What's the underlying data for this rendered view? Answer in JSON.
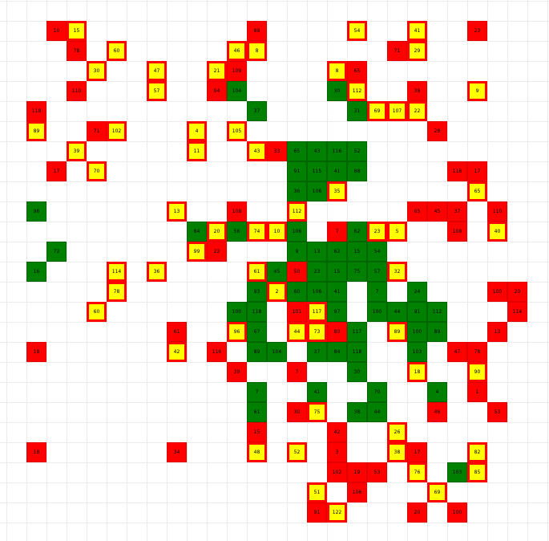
{
  "board": {
    "cols": 27,
    "rows": 26,
    "colors": {
      "red": "#ff0000",
      "green": "#008000",
      "yellow": "#ffff00",
      "border_red": "#e00000",
      "border_yellow": "#e6b800",
      "border_green": "#006400",
      "grid": "#ebebeb"
    },
    "cells": [
      {
        "c": 2,
        "r": 1,
        "k": "R",
        "t": "10"
      },
      {
        "c": 3,
        "r": 1,
        "k": "Y",
        "t": "15"
      },
      {
        "c": 12,
        "r": 1,
        "k": "R",
        "t": "88"
      },
      {
        "c": 17,
        "r": 1,
        "k": "Y",
        "t": "54"
      },
      {
        "c": 20,
        "r": 1,
        "k": "Y",
        "t": "41"
      },
      {
        "c": 23,
        "r": 1,
        "k": "R",
        "t": "23"
      },
      {
        "c": 3,
        "r": 2,
        "k": "R",
        "t": "78"
      },
      {
        "c": 5,
        "r": 2,
        "k": "Y",
        "t": "60"
      },
      {
        "c": 11,
        "r": 2,
        "k": "Y",
        "t": "46"
      },
      {
        "c": 12,
        "r": 2,
        "k": "Y",
        "t": "8"
      },
      {
        "c": 19,
        "r": 2,
        "k": "R",
        "t": "71"
      },
      {
        "c": 20,
        "r": 2,
        "k": "Y",
        "t": "29"
      },
      {
        "c": 4,
        "r": 3,
        "k": "Y",
        "t": "30"
      },
      {
        "c": 7,
        "r": 3,
        "k": "Y",
        "t": "47"
      },
      {
        "c": 10,
        "r": 3,
        "k": "Y",
        "t": "21"
      },
      {
        "c": 11,
        "r": 3,
        "k": "R",
        "t": "109"
      },
      {
        "c": 16,
        "r": 3,
        "k": "Y",
        "t": "8"
      },
      {
        "c": 17,
        "r": 3,
        "k": "R",
        "t": "65"
      },
      {
        "c": 3,
        "r": 4,
        "k": "R",
        "t": "110"
      },
      {
        "c": 7,
        "r": 4,
        "k": "Y",
        "t": "57"
      },
      {
        "c": 10,
        "r": 4,
        "k": "R",
        "t": "94"
      },
      {
        "c": 11,
        "r": 4,
        "k": "G",
        "t": "104"
      },
      {
        "c": 16,
        "r": 4,
        "k": "G",
        "t": "30"
      },
      {
        "c": 17,
        "r": 4,
        "k": "Y",
        "t": "112"
      },
      {
        "c": 20,
        "r": 4,
        "k": "R",
        "t": "38"
      },
      {
        "c": 23,
        "r": 4,
        "k": "Y",
        "t": "9"
      },
      {
        "c": 1,
        "r": 5,
        "k": "R",
        "t": "118"
      },
      {
        "c": 12,
        "r": 5,
        "k": "G",
        "t": "37"
      },
      {
        "c": 17,
        "r": 5,
        "k": "G",
        "t": "31"
      },
      {
        "c": 18,
        "r": 5,
        "k": "Y",
        "t": "69"
      },
      {
        "c": 19,
        "r": 5,
        "k": "Y",
        "t": "107"
      },
      {
        "c": 20,
        "r": 5,
        "k": "Y",
        "t": "22"
      },
      {
        "c": 1,
        "r": 6,
        "k": "Y",
        "t": "89"
      },
      {
        "c": 4,
        "r": 6,
        "k": "R",
        "t": "71"
      },
      {
        "c": 5,
        "r": 6,
        "k": "Y",
        "t": "102"
      },
      {
        "c": 9,
        "r": 6,
        "k": "Y",
        "t": "4"
      },
      {
        "c": 11,
        "r": 6,
        "k": "Y",
        "t": "105"
      },
      {
        "c": 21,
        "r": 6,
        "k": "R",
        "t": "28"
      },
      {
        "c": 3,
        "r": 7,
        "k": "Y",
        "t": "39"
      },
      {
        "c": 9,
        "r": 7,
        "k": "Y",
        "t": "11"
      },
      {
        "c": 12,
        "r": 7,
        "k": "Y",
        "t": "43"
      },
      {
        "c": 13,
        "r": 7,
        "k": "R",
        "t": "33"
      },
      {
        "c": 14,
        "r": 7,
        "k": "G",
        "t": "65"
      },
      {
        "c": 15,
        "r": 7,
        "k": "G",
        "t": "43"
      },
      {
        "c": 16,
        "r": 7,
        "k": "G",
        "t": "116"
      },
      {
        "c": 17,
        "r": 7,
        "k": "G",
        "t": "52"
      },
      {
        "c": 2,
        "r": 8,
        "k": "R",
        "t": "17"
      },
      {
        "c": 4,
        "r": 8,
        "k": "Y",
        "t": "70"
      },
      {
        "c": 14,
        "r": 8,
        "k": "G",
        "t": "91"
      },
      {
        "c": 15,
        "r": 8,
        "k": "G",
        "t": "115"
      },
      {
        "c": 16,
        "r": 8,
        "k": "G",
        "t": "41"
      },
      {
        "c": 17,
        "r": 8,
        "k": "G",
        "t": "88"
      },
      {
        "c": 22,
        "r": 8,
        "k": "R",
        "t": "118"
      },
      {
        "c": 23,
        "r": 8,
        "k": "R",
        "t": "17"
      },
      {
        "c": 14,
        "r": 9,
        "k": "G",
        "t": "36"
      },
      {
        "c": 15,
        "r": 9,
        "k": "G",
        "t": "106"
      },
      {
        "c": 16,
        "r": 9,
        "k": "Y",
        "t": "35"
      },
      {
        "c": 23,
        "r": 9,
        "k": "Y",
        "t": "65"
      },
      {
        "c": 1,
        "r": 10,
        "k": "G",
        "t": "96"
      },
      {
        "c": 8,
        "r": 10,
        "k": "Y",
        "t": "13"
      },
      {
        "c": 11,
        "r": 10,
        "k": "R",
        "t": "108"
      },
      {
        "c": 14,
        "r": 10,
        "k": "Y",
        "t": "112"
      },
      {
        "c": 20,
        "r": 10,
        "k": "R",
        "t": "65"
      },
      {
        "c": 21,
        "r": 10,
        "k": "R",
        "t": "45"
      },
      {
        "c": 22,
        "r": 10,
        "k": "R",
        "t": "37"
      },
      {
        "c": 24,
        "r": 10,
        "k": "R",
        "t": "110"
      },
      {
        "c": 9,
        "r": 11,
        "k": "G",
        "t": "84"
      },
      {
        "c": 10,
        "r": 11,
        "k": "Y",
        "t": "20"
      },
      {
        "c": 11,
        "r": 11,
        "k": "G",
        "t": "56"
      },
      {
        "c": 12,
        "r": 11,
        "k": "Y",
        "t": "74"
      },
      {
        "c": 13,
        "r": 11,
        "k": "Y",
        "t": "10"
      },
      {
        "c": 14,
        "r": 11,
        "k": "G",
        "t": "106"
      },
      {
        "c": 16,
        "r": 11,
        "k": "R",
        "t": "7"
      },
      {
        "c": 17,
        "r": 11,
        "k": "G",
        "t": "62"
      },
      {
        "c": 18,
        "r": 11,
        "k": "Y",
        "t": "23"
      },
      {
        "c": 19,
        "r": 11,
        "k": "Y",
        "t": "5"
      },
      {
        "c": 22,
        "r": 11,
        "k": "R",
        "t": "108"
      },
      {
        "c": 24,
        "r": 11,
        "k": "Y",
        "t": "40"
      },
      {
        "c": 2,
        "r": 12,
        "k": "G",
        "t": "72"
      },
      {
        "c": 9,
        "r": 12,
        "k": "Y",
        "t": "99"
      },
      {
        "c": 10,
        "r": 12,
        "k": "R",
        "t": "22"
      },
      {
        "c": 14,
        "r": 12,
        "k": "G",
        "t": "9"
      },
      {
        "c": 15,
        "r": 12,
        "k": "G",
        "t": "13"
      },
      {
        "c": 16,
        "r": 12,
        "k": "G",
        "t": "62"
      },
      {
        "c": 17,
        "r": 12,
        "k": "G",
        "t": "15"
      },
      {
        "c": 18,
        "r": 12,
        "k": "G",
        "t": "54"
      },
      {
        "c": 1,
        "r": 13,
        "k": "G",
        "t": "16"
      },
      {
        "c": 5,
        "r": 13,
        "k": "Y",
        "t": "114"
      },
      {
        "c": 7,
        "r": 13,
        "k": "Y",
        "t": "36"
      },
      {
        "c": 12,
        "r": 13,
        "k": "Y",
        "t": "61"
      },
      {
        "c": 13,
        "r": 13,
        "k": "G",
        "t": "45"
      },
      {
        "c": 14,
        "r": 13,
        "k": "R",
        "t": "50"
      },
      {
        "c": 15,
        "r": 13,
        "k": "G",
        "t": "23"
      },
      {
        "c": 16,
        "r": 13,
        "k": "G",
        "t": "15"
      },
      {
        "c": 17,
        "r": 13,
        "k": "G",
        "t": "75"
      },
      {
        "c": 18,
        "r": 13,
        "k": "G",
        "t": "57"
      },
      {
        "c": 19,
        "r": 13,
        "k": "Y",
        "t": "32"
      },
      {
        "c": 5,
        "r": 14,
        "k": "Y",
        "t": "78"
      },
      {
        "c": 12,
        "r": 14,
        "k": "G",
        "t": "93"
      },
      {
        "c": 13,
        "r": 14,
        "k": "Y",
        "t": "2"
      },
      {
        "c": 14,
        "r": 14,
        "k": "G",
        "t": "60"
      },
      {
        "c": 15,
        "r": 14,
        "k": "G",
        "t": "106"
      },
      {
        "c": 16,
        "r": 14,
        "k": "G",
        "t": "41"
      },
      {
        "c": 18,
        "r": 14,
        "k": "G",
        "t": "7"
      },
      {
        "c": 20,
        "r": 14,
        "k": "G",
        "t": "24"
      },
      {
        "c": 24,
        "r": 14,
        "k": "R",
        "t": "100"
      },
      {
        "c": 25,
        "r": 14,
        "k": "R",
        "t": "20"
      },
      {
        "c": 4,
        "r": 15,
        "k": "Y",
        "t": "60"
      },
      {
        "c": 11,
        "r": 15,
        "k": "G",
        "t": "100"
      },
      {
        "c": 12,
        "r": 15,
        "k": "G",
        "t": "118"
      },
      {
        "c": 14,
        "r": 15,
        "k": "R",
        "t": "101"
      },
      {
        "c": 15,
        "r": 15,
        "k": "Y",
        "t": "117"
      },
      {
        "c": 16,
        "r": 15,
        "k": "G",
        "t": "97"
      },
      {
        "c": 18,
        "r": 15,
        "k": "G",
        "t": "100"
      },
      {
        "c": 19,
        "r": 15,
        "k": "G",
        "t": "44"
      },
      {
        "c": 20,
        "r": 15,
        "k": "G",
        "t": "91"
      },
      {
        "c": 21,
        "r": 15,
        "k": "G",
        "t": "112"
      },
      {
        "c": 25,
        "r": 15,
        "k": "R",
        "t": "114"
      },
      {
        "c": 8,
        "r": 16,
        "k": "R",
        "t": "61"
      },
      {
        "c": 11,
        "r": 16,
        "k": "Y",
        "t": "96"
      },
      {
        "c": 12,
        "r": 16,
        "k": "G",
        "t": "67"
      },
      {
        "c": 14,
        "r": 16,
        "k": "Y",
        "t": "44"
      },
      {
        "c": 15,
        "r": 16,
        "k": "Y",
        "t": "73"
      },
      {
        "c": 16,
        "r": 16,
        "k": "R",
        "t": "80"
      },
      {
        "c": 17,
        "r": 16,
        "k": "G",
        "t": "117"
      },
      {
        "c": 19,
        "r": 16,
        "k": "Y",
        "t": "89"
      },
      {
        "c": 20,
        "r": 16,
        "k": "G",
        "t": "100"
      },
      {
        "c": 21,
        "r": 16,
        "k": "G",
        "t": "89"
      },
      {
        "c": 24,
        "r": 16,
        "k": "R",
        "t": "13"
      },
      {
        "c": 1,
        "r": 17,
        "k": "R",
        "t": "18"
      },
      {
        "c": 8,
        "r": 17,
        "k": "Y",
        "t": "42"
      },
      {
        "c": 10,
        "r": 17,
        "k": "R",
        "t": "116"
      },
      {
        "c": 12,
        "r": 17,
        "k": "G",
        "t": "89"
      },
      {
        "c": 13,
        "r": 17,
        "k": "G",
        "t": "104"
      },
      {
        "c": 15,
        "r": 17,
        "k": "G",
        "t": "37"
      },
      {
        "c": 16,
        "r": 17,
        "k": "G",
        "t": "84"
      },
      {
        "c": 17,
        "r": 17,
        "k": "G",
        "t": "118"
      },
      {
        "c": 20,
        "r": 17,
        "k": "G",
        "t": "103"
      },
      {
        "c": 22,
        "r": 17,
        "k": "R",
        "t": "47"
      },
      {
        "c": 23,
        "r": 17,
        "k": "R",
        "t": "78"
      },
      {
        "c": 11,
        "r": 18,
        "k": "R",
        "t": "39"
      },
      {
        "c": 14,
        "r": 18,
        "k": "R",
        "t": "7"
      },
      {
        "c": 17,
        "r": 18,
        "k": "G",
        "t": "30"
      },
      {
        "c": 20,
        "r": 18,
        "k": "Y",
        "t": "18"
      },
      {
        "c": 23,
        "r": 18,
        "k": "Y",
        "t": "90"
      },
      {
        "c": 12,
        "r": 19,
        "k": "G",
        "t": "7"
      },
      {
        "c": 15,
        "r": 19,
        "k": "G",
        "t": "41"
      },
      {
        "c": 18,
        "r": 19,
        "k": "G",
        "t": "70"
      },
      {
        "c": 21,
        "r": 19,
        "k": "G",
        "t": "4"
      },
      {
        "c": 23,
        "r": 19,
        "k": "R",
        "t": "1"
      },
      {
        "c": 12,
        "r": 20,
        "k": "G",
        "t": "61"
      },
      {
        "c": 14,
        "r": 20,
        "k": "R",
        "t": "30"
      },
      {
        "c": 15,
        "r": 20,
        "k": "Y",
        "t": "75"
      },
      {
        "c": 17,
        "r": 20,
        "k": "G",
        "t": "38"
      },
      {
        "c": 18,
        "r": 20,
        "k": "G",
        "t": "44"
      },
      {
        "c": 21,
        "r": 20,
        "k": "R",
        "t": "46"
      },
      {
        "c": 24,
        "r": 20,
        "k": "R",
        "t": "53"
      },
      {
        "c": 12,
        "r": 21,
        "k": "R",
        "t": "15"
      },
      {
        "c": 16,
        "r": 21,
        "k": "R",
        "t": "42"
      },
      {
        "c": 19,
        "r": 21,
        "k": "Y",
        "t": "26"
      },
      {
        "c": 1,
        "r": 22,
        "k": "R",
        "t": "18"
      },
      {
        "c": 8,
        "r": 22,
        "k": "R",
        "t": "34"
      },
      {
        "c": 12,
        "r": 22,
        "k": "Y",
        "t": "48"
      },
      {
        "c": 14,
        "r": 22,
        "k": "Y",
        "t": "52"
      },
      {
        "c": 16,
        "r": 22,
        "k": "R",
        "t": "3"
      },
      {
        "c": 19,
        "r": 22,
        "k": "Y",
        "t": "38"
      },
      {
        "c": 20,
        "r": 22,
        "k": "R",
        "t": "17"
      },
      {
        "c": 23,
        "r": 22,
        "k": "Y",
        "t": "82"
      },
      {
        "c": 16,
        "r": 23,
        "k": "R",
        "t": "102"
      },
      {
        "c": 17,
        "r": 23,
        "k": "R",
        "t": "19"
      },
      {
        "c": 18,
        "r": 23,
        "k": "R",
        "t": "53"
      },
      {
        "c": 20,
        "r": 23,
        "k": "Y",
        "t": "76"
      },
      {
        "c": 22,
        "r": 23,
        "k": "G",
        "t": "103"
      },
      {
        "c": 23,
        "r": 23,
        "k": "Y",
        "t": "85"
      },
      {
        "c": 15,
        "r": 24,
        "k": "Y",
        "t": "51"
      },
      {
        "c": 17,
        "r": 24,
        "k": "R",
        "t": "106"
      },
      {
        "c": 21,
        "r": 24,
        "k": "Y",
        "t": "69"
      },
      {
        "c": 15,
        "r": 25,
        "k": "R",
        "t": "91"
      },
      {
        "c": 16,
        "r": 25,
        "k": "Y",
        "t": "122"
      },
      {
        "c": 20,
        "r": 25,
        "k": "R",
        "t": "20"
      },
      {
        "c": 22,
        "r": 25,
        "k": "R",
        "t": "100"
      }
    ]
  }
}
